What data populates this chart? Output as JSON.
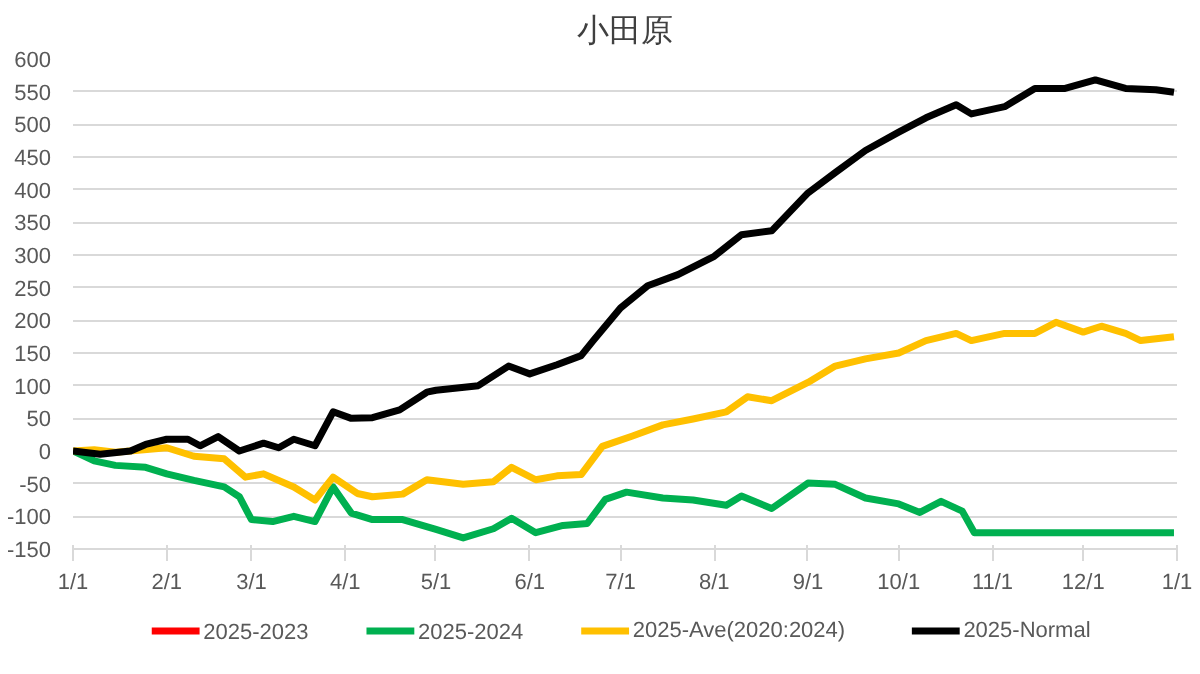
{
  "chart_data": {
    "type": "line",
    "title": "小田原",
    "xlim": [
      "2025-01-01",
      "2026-01-01"
    ],
    "xticks": [
      {
        "value": "2025-01-01",
        "label": "1/1"
      },
      {
        "value": "2025-02-01",
        "label": "2/1"
      },
      {
        "value": "2025-03-01",
        "label": "3/1"
      },
      {
        "value": "2025-04-01",
        "label": "4/1"
      },
      {
        "value": "2025-05-01",
        "label": "5/1"
      },
      {
        "value": "2025-06-01",
        "label": "6/1"
      },
      {
        "value": "2025-07-01",
        "label": "7/1"
      },
      {
        "value": "2025-08-01",
        "label": "8/1"
      },
      {
        "value": "2025-09-01",
        "label": "9/1"
      },
      {
        "value": "2025-10-01",
        "label": "10/1"
      },
      {
        "value": "2025-11-01",
        "label": "11/1"
      },
      {
        "value": "2025-12-01",
        "label": "12/1"
      },
      {
        "value": "2026-01-01",
        "label": "1/1"
      }
    ],
    "ylim": [
      -150,
      600
    ],
    "yticks": [
      -150,
      -100,
      -50,
      0,
      50,
      100,
      150,
      200,
      250,
      300,
      350,
      400,
      450,
      500,
      550,
      600
    ],
    "grid": "y",
    "legend": "bottom",
    "marker": "none",
    "line_style": "solid",
    "series": [
      {
        "name": "2025-2023",
        "color": "#ff0000"
      },
      {
        "name": "2025-2024",
        "color": "#00b050",
        "x": [
          "2025-01-01",
          "2025-01-08",
          "2025-01-15",
          "2025-01-25",
          "2025-02-01",
          "2025-02-10",
          "2025-02-20",
          "2025-02-25",
          "2025-03-01",
          "2025-03-08",
          "2025-03-15",
          "2025-03-22",
          "2025-03-28",
          "2025-04-03",
          "2025-04-10",
          "2025-04-20",
          "2025-05-01",
          "2025-05-10",
          "2025-05-20",
          "2025-05-26",
          "2025-06-03",
          "2025-06-12",
          "2025-06-20",
          "2025-06-26",
          "2025-07-03",
          "2025-07-15",
          "2025-07-25",
          "2025-08-05",
          "2025-08-10",
          "2025-08-20",
          "2025-09-01",
          "2025-09-10",
          "2025-09-20",
          "2025-10-01",
          "2025-10-08",
          "2025-10-15",
          "2025-10-22",
          "2025-10-26",
          "2025-12-31"
        ],
        "values": [
          0,
          -15,
          -22,
          -25,
          -35,
          -45,
          -55,
          -70,
          -105,
          -108,
          -100,
          -108,
          -55,
          -95,
          -105,
          -105,
          -120,
          -133,
          -119,
          -103,
          -125,
          -114,
          -111,
          -74,
          -63,
          -72,
          -75,
          -83,
          -69,
          -88,
          -49,
          -51,
          -72,
          -81,
          -94,
          -77,
          -92,
          -125,
          -125
        ]
      },
      {
        "name": "2025-Ave(2020:2024)",
        "color": "#ffc000",
        "x": [
          "2025-01-01",
          "2025-01-08",
          "2025-01-15",
          "2025-02-01",
          "2025-02-10",
          "2025-02-20",
          "2025-02-27",
          "2025-03-05",
          "2025-03-15",
          "2025-03-22",
          "2025-03-28",
          "2025-04-05",
          "2025-04-10",
          "2025-04-20",
          "2025-04-28",
          "2025-05-10",
          "2025-05-20",
          "2025-05-26",
          "2025-06-03",
          "2025-06-10",
          "2025-06-18",
          "2025-06-25",
          "2025-07-05",
          "2025-07-15",
          "2025-07-25",
          "2025-08-05",
          "2025-08-12",
          "2025-08-20",
          "2025-09-01",
          "2025-09-10",
          "2025-09-20",
          "2025-10-01",
          "2025-10-10",
          "2025-10-20",
          "2025-10-25",
          "2025-11-05",
          "2025-11-15",
          "2025-11-22",
          "2025-12-01",
          "2025-12-07",
          "2025-12-15",
          "2025-12-20",
          "2025-12-31"
        ],
        "values": [
          0,
          2,
          -2,
          5,
          -8,
          -12,
          -40,
          -35,
          -55,
          -75,
          -40,
          -65,
          -70,
          -66,
          -44,
          -51,
          -47,
          -25,
          -44,
          -38,
          -36,
          7,
          23,
          40,
          49,
          60,
          83,
          77,
          105,
          130,
          141,
          150,
          169,
          180,
          169,
          180,
          180,
          197,
          182,
          191,
          180,
          169,
          175
        ]
      },
      {
        "name": "2025-Normal",
        "color": "#000000",
        "x": [
          "2025-01-01",
          "2025-01-10",
          "2025-01-20",
          "2025-01-25",
          "2025-02-01",
          "2025-02-08",
          "2025-02-12",
          "2025-02-18",
          "2025-02-25",
          "2025-03-05",
          "2025-03-10",
          "2025-03-15",
          "2025-03-22",
          "2025-03-28",
          "2025-04-03",
          "2025-04-10",
          "2025-04-19",
          "2025-04-28",
          "2025-05-01",
          "2025-05-15",
          "2025-05-25",
          "2025-06-01",
          "2025-06-10",
          "2025-06-18",
          "2025-06-22",
          "2025-07-01",
          "2025-07-10",
          "2025-07-20",
          "2025-08-01",
          "2025-08-10",
          "2025-08-20",
          "2025-09-01",
          "2025-09-10",
          "2025-09-20",
          "2025-10-01",
          "2025-10-10",
          "2025-10-20",
          "2025-10-25",
          "2025-11-05",
          "2025-11-15",
          "2025-11-25",
          "2025-12-05",
          "2025-12-15",
          "2025-12-25",
          "2025-12-31"
        ],
        "values": [
          0,
          -5,
          0,
          10,
          18,
          18,
          8,
          22,
          0,
          12,
          5,
          18,
          8,
          60,
          50,
          51,
          63,
          90,
          93,
          100,
          130,
          118,
          132,
          146,
          169,
          219,
          253,
          270,
          298,
          331,
          337,
          395,
          426,
          460,
          488,
          510,
          530,
          516,
          527,
          555,
          555,
          568,
          555,
          553,
          549
        ]
      }
    ]
  }
}
